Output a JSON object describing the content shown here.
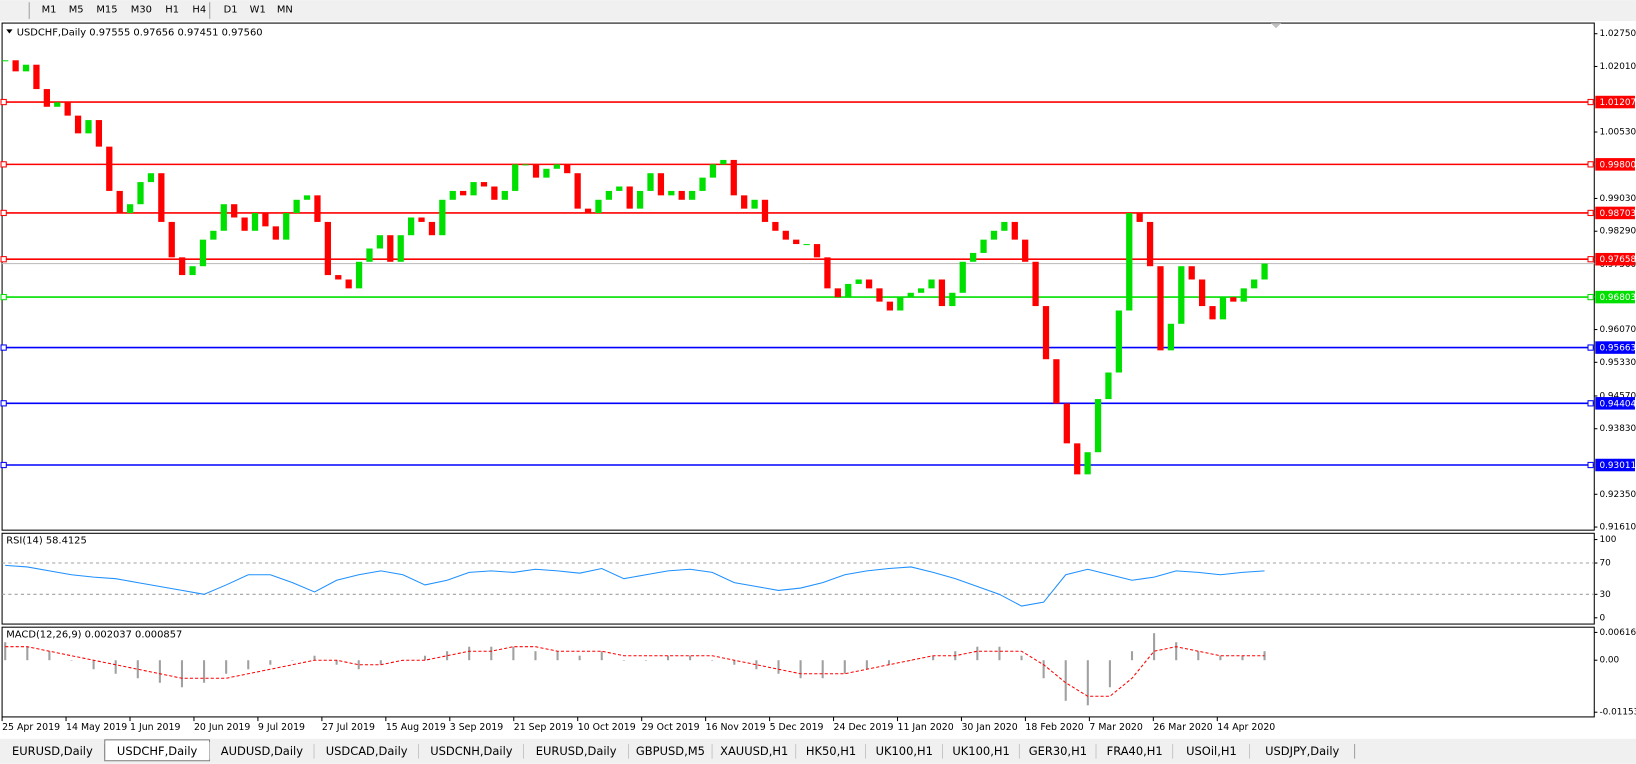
{
  "toolbar": {
    "timeframes": [
      "M1",
      "M5",
      "M15",
      "M30",
      "H1",
      "H4",
      "D1",
      "W1",
      "MN"
    ]
  },
  "chart": {
    "header": "USDCHF,Daily  0.97555 0.97656 0.97451 0.97560",
    "ylim": [
      0.9154,
      1.0299
    ],
    "yticks": [
      {
        "value": 1.0275,
        "label": "1.02750"
      },
      {
        "value": 1.0201,
        "label": "1.02010"
      },
      {
        "value": 1.0053,
        "label": "1.00530"
      },
      {
        "value": 0.9903,
        "label": "0.99030"
      },
      {
        "value": 0.9829,
        "label": "0.98290"
      },
      {
        "value": 0.9607,
        "label": "0.96070"
      },
      {
        "value": 0.9533,
        "label": "0.95330"
      },
      {
        "value": 0.9457,
        "label": "0.94570"
      },
      {
        "value": 0.9383,
        "label": "0.93830"
      },
      {
        "value": 0.9235,
        "label": "0.92350"
      },
      {
        "value": 0.9161,
        "label": "0.91610"
      }
    ],
    "current_price": {
      "value": 0.9756,
      "label": "0.97560"
    },
    "levels": [
      {
        "value": 1.01207,
        "color": "#ff0000"
      },
      {
        "value": 0.998,
        "label": "0.99800",
        "color": "#ff0000"
      },
      {
        "value": 0.98703,
        "color": "#ff0000"
      },
      {
        "value": 0.97658,
        "color": "#ff0000"
      },
      {
        "value": 0.96803,
        "color": "#00e000"
      },
      {
        "value": 0.95663,
        "color": "#0000ff"
      },
      {
        "value": 0.94404,
        "color": "#0000ff"
      },
      {
        "value": 0.93011,
        "color": "#0000ff"
      }
    ],
    "up_color": "#00e000",
    "down_color": "#ff0000",
    "closes": [
      1.0215,
      1.019,
      1.0205,
      1.015,
      1.011,
      1.012,
      1.009,
      1.005,
      1.008,
      1.002,
      0.992,
      0.987,
      0.989,
      0.994,
      0.996,
      0.985,
      0.977,
      0.973,
      0.975,
      0.981,
      0.983,
      0.989,
      0.986,
      0.983,
      0.987,
      0.984,
      0.981,
      0.987,
      0.99,
      0.991,
      0.985,
      0.973,
      0.972,
      0.97,
      0.976,
      0.979,
      0.982,
      0.976,
      0.982,
      0.986,
      0.985,
      0.982,
      0.99,
      0.992,
      0.991,
      0.994,
      0.993,
      0.99,
      0.992,
      0.998,
      0.998,
      0.995,
      0.997,
      0.998,
      0.996,
      0.988,
      0.987,
      0.99,
      0.992,
      0.993,
      0.988,
      0.992,
      0.996,
      0.991,
      0.992,
      0.99,
      0.992,
      0.995,
      0.998,
      0.999,
      0.991,
      0.988,
      0.99,
      0.985,
      0.983,
      0.981,
      0.98,
      0.98,
      0.977,
      0.97,
      0.968,
      0.971,
      0.972,
      0.97,
      0.967,
      0.965,
      0.968,
      0.969,
      0.97,
      0.972,
      0.966,
      0.969,
      0.976,
      0.978,
      0.981,
      0.983,
      0.985,
      0.981,
      0.976,
      0.966,
      0.954,
      0.944,
      0.935,
      0.928,
      0.933,
      0.945,
      0.951,
      0.965,
      0.987,
      0.985,
      0.975,
      0.956,
      0.962,
      0.975,
      0.972,
      0.966,
      0.963,
      0.968,
      0.967,
      0.97,
      0.972,
      0.9756
    ],
    "dates": [
      "25 Apr 2019",
      "14 May 2019",
      "1 Jun 2019",
      "20 Jun 2019",
      "9 Jul 2019",
      "27 Jul 2019",
      "15 Aug 2019",
      "3 Sep 2019",
      "21 Sep 2019",
      "10 Oct 2019",
      "29 Oct 2019",
      "16 Nov 2019",
      "5 Dec 2019",
      "24 Dec 2019",
      "11 Jan 2020",
      "30 Jan 2020",
      "18 Feb 2020",
      "7 Mar 2020",
      "26 Mar 2020",
      "14 Apr 2020"
    ]
  },
  "rsi": {
    "title": "RSI(14) 58.4125",
    "ylim": [
      -8,
      108
    ],
    "yticks": [
      100,
      70,
      30,
      0
    ],
    "dashed": [
      70,
      30
    ],
    "color": "#1e90ff",
    "values": [
      67,
      65,
      60,
      55,
      52,
      50,
      45,
      40,
      35,
      30,
      42,
      55,
      55,
      45,
      33,
      48,
      55,
      60,
      55,
      42,
      48,
      58,
      60,
      58,
      62,
      60,
      57,
      63,
      50,
      55,
      60,
      62,
      58,
      45,
      40,
      35,
      38,
      45,
      55,
      60,
      63,
      65,
      58,
      50,
      40,
      30,
      15,
      20,
      55,
      62,
      55,
      48,
      52,
      60,
      58,
      55,
      58,
      60
    ]
  },
  "macd": {
    "title": "MACD(12,26,9) 0.002037 0.000857",
    "ylim": [
      -0.01258,
      0.00733
    ],
    "yticks": [
      {
        "value": 0.006167,
        "label": "0.006167"
      },
      {
        "value": 0,
        "label": "0.00"
      },
      {
        "value": -0.011535,
        "label": "-0.011535"
      }
    ],
    "hist_color": "#a0a0a0",
    "signal_color": "#ff0000",
    "histogram": [
      0.004,
      0.003,
      0.002,
      0,
      -0.002,
      -0.003,
      -0.004,
      -0.005,
      -0.006,
      -0.005,
      -0.003,
      -0.002,
      -0.001,
      0,
      0.001,
      -0.001,
      -0.002,
      -0.001,
      0,
      0.001,
      0.002,
      0.003,
      0.003,
      0.003,
      0.002,
      0.002,
      0.001,
      0.002,
      0,
      0,
      0.001,
      0.001,
      0,
      -0.001,
      -0.002,
      -0.003,
      -0.004,
      -0.004,
      -0.003,
      -0.002,
      -0.001,
      0,
      0.001,
      0.002,
      0.003,
      0.003,
      0.001,
      -0.004,
      -0.009,
      -0.01,
      -0.006,
      0.002,
      0.006,
      0.004,
      0.002,
      0.001,
      0.001,
      0.002
    ],
    "signal": [
      0.003,
      0.003,
      0.002,
      0.001,
      0,
      -0.001,
      -0.002,
      -0.003,
      -0.004,
      -0.004,
      -0.004,
      -0.003,
      -0.002,
      -0.001,
      0,
      0,
      -0.001,
      -0.001,
      0,
      0,
      0.001,
      0.002,
      0.002,
      0.003,
      0.003,
      0.002,
      0.002,
      0.002,
      0.001,
      0.001,
      0.001,
      0.001,
      0.001,
      0,
      -0.001,
      -0.002,
      -0.003,
      -0.003,
      -0.003,
      -0.002,
      -0.001,
      0,
      0.001,
      0.001,
      0.002,
      0.002,
      0.002,
      -0.001,
      -0.005,
      -0.008,
      -0.008,
      -0.004,
      0.002,
      0.003,
      0.002,
      0.001,
      0.001,
      0.001
    ]
  },
  "tabs": [
    "EURUSD,Daily",
    "USDCHF,Daily",
    "AUDUSD,Daily",
    "USDCAD,Daily",
    "USDCNH,Daily",
    "EURUSD,Daily",
    "GBPUSD,M5",
    "XAUUSD,H1",
    "HK50,H1",
    "UK100,H1",
    "UK100,H1",
    "GER30,H1",
    "FRA40,H1",
    "USOil,H1",
    "USDJPY,Daily"
  ],
  "active_tab": 1
}
